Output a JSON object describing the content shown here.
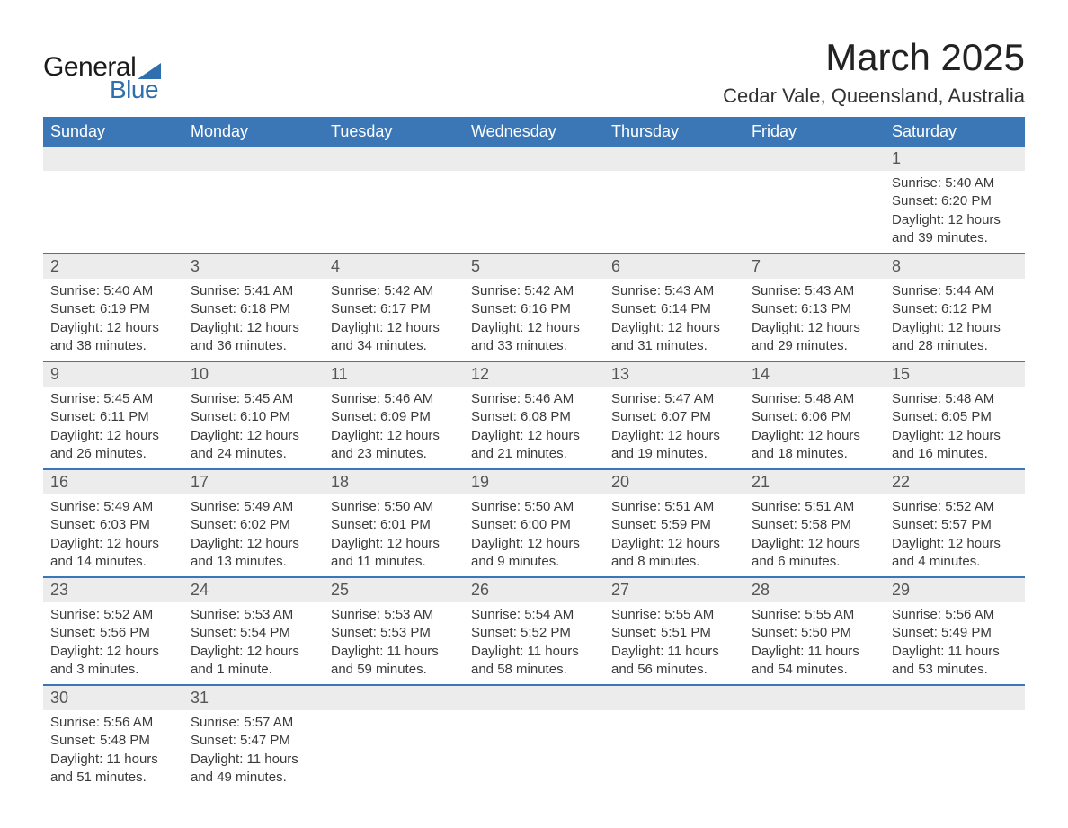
{
  "logo": {
    "text1": "General",
    "text2": "Blue",
    "accent_color": "#2f6fae"
  },
  "title": "March 2025",
  "subtitle": "Cedar Vale, Queensland, Australia",
  "colors": {
    "header_bg": "#3b77b6",
    "header_text": "#ffffff",
    "row_border": "#3b77b6",
    "daynum_bg": "#ececec",
    "body_text": "#3a3a3a"
  },
  "fontsize": {
    "title": 42,
    "subtitle": 22,
    "dayhead": 18,
    "daynum": 18,
    "body": 15
  },
  "days_of_week": [
    "Sunday",
    "Monday",
    "Tuesday",
    "Wednesday",
    "Thursday",
    "Friday",
    "Saturday"
  ],
  "weeks": [
    [
      {
        "n": "",
        "sunrise": "",
        "sunset": "",
        "daylight": ""
      },
      {
        "n": "",
        "sunrise": "",
        "sunset": "",
        "daylight": ""
      },
      {
        "n": "",
        "sunrise": "",
        "sunset": "",
        "daylight": ""
      },
      {
        "n": "",
        "sunrise": "",
        "sunset": "",
        "daylight": ""
      },
      {
        "n": "",
        "sunrise": "",
        "sunset": "",
        "daylight": ""
      },
      {
        "n": "",
        "sunrise": "",
        "sunset": "",
        "daylight": ""
      },
      {
        "n": "1",
        "sunrise": "Sunrise: 5:40 AM",
        "sunset": "Sunset: 6:20 PM",
        "daylight": "Daylight: 12 hours and 39 minutes."
      }
    ],
    [
      {
        "n": "2",
        "sunrise": "Sunrise: 5:40 AM",
        "sunset": "Sunset: 6:19 PM",
        "daylight": "Daylight: 12 hours and 38 minutes."
      },
      {
        "n": "3",
        "sunrise": "Sunrise: 5:41 AM",
        "sunset": "Sunset: 6:18 PM",
        "daylight": "Daylight: 12 hours and 36 minutes."
      },
      {
        "n": "4",
        "sunrise": "Sunrise: 5:42 AM",
        "sunset": "Sunset: 6:17 PM",
        "daylight": "Daylight: 12 hours and 34 minutes."
      },
      {
        "n": "5",
        "sunrise": "Sunrise: 5:42 AM",
        "sunset": "Sunset: 6:16 PM",
        "daylight": "Daylight: 12 hours and 33 minutes."
      },
      {
        "n": "6",
        "sunrise": "Sunrise: 5:43 AM",
        "sunset": "Sunset: 6:14 PM",
        "daylight": "Daylight: 12 hours and 31 minutes."
      },
      {
        "n": "7",
        "sunrise": "Sunrise: 5:43 AM",
        "sunset": "Sunset: 6:13 PM",
        "daylight": "Daylight: 12 hours and 29 minutes."
      },
      {
        "n": "8",
        "sunrise": "Sunrise: 5:44 AM",
        "sunset": "Sunset: 6:12 PM",
        "daylight": "Daylight: 12 hours and 28 minutes."
      }
    ],
    [
      {
        "n": "9",
        "sunrise": "Sunrise: 5:45 AM",
        "sunset": "Sunset: 6:11 PM",
        "daylight": "Daylight: 12 hours and 26 minutes."
      },
      {
        "n": "10",
        "sunrise": "Sunrise: 5:45 AM",
        "sunset": "Sunset: 6:10 PM",
        "daylight": "Daylight: 12 hours and 24 minutes."
      },
      {
        "n": "11",
        "sunrise": "Sunrise: 5:46 AM",
        "sunset": "Sunset: 6:09 PM",
        "daylight": "Daylight: 12 hours and 23 minutes."
      },
      {
        "n": "12",
        "sunrise": "Sunrise: 5:46 AM",
        "sunset": "Sunset: 6:08 PM",
        "daylight": "Daylight: 12 hours and 21 minutes."
      },
      {
        "n": "13",
        "sunrise": "Sunrise: 5:47 AM",
        "sunset": "Sunset: 6:07 PM",
        "daylight": "Daylight: 12 hours and 19 minutes."
      },
      {
        "n": "14",
        "sunrise": "Sunrise: 5:48 AM",
        "sunset": "Sunset: 6:06 PM",
        "daylight": "Daylight: 12 hours and 18 minutes."
      },
      {
        "n": "15",
        "sunrise": "Sunrise: 5:48 AM",
        "sunset": "Sunset: 6:05 PM",
        "daylight": "Daylight: 12 hours and 16 minutes."
      }
    ],
    [
      {
        "n": "16",
        "sunrise": "Sunrise: 5:49 AM",
        "sunset": "Sunset: 6:03 PM",
        "daylight": "Daylight: 12 hours and 14 minutes."
      },
      {
        "n": "17",
        "sunrise": "Sunrise: 5:49 AM",
        "sunset": "Sunset: 6:02 PM",
        "daylight": "Daylight: 12 hours and 13 minutes."
      },
      {
        "n": "18",
        "sunrise": "Sunrise: 5:50 AM",
        "sunset": "Sunset: 6:01 PM",
        "daylight": "Daylight: 12 hours and 11 minutes."
      },
      {
        "n": "19",
        "sunrise": "Sunrise: 5:50 AM",
        "sunset": "Sunset: 6:00 PM",
        "daylight": "Daylight: 12 hours and 9 minutes."
      },
      {
        "n": "20",
        "sunrise": "Sunrise: 5:51 AM",
        "sunset": "Sunset: 5:59 PM",
        "daylight": "Daylight: 12 hours and 8 minutes."
      },
      {
        "n": "21",
        "sunrise": "Sunrise: 5:51 AM",
        "sunset": "Sunset: 5:58 PM",
        "daylight": "Daylight: 12 hours and 6 minutes."
      },
      {
        "n": "22",
        "sunrise": "Sunrise: 5:52 AM",
        "sunset": "Sunset: 5:57 PM",
        "daylight": "Daylight: 12 hours and 4 minutes."
      }
    ],
    [
      {
        "n": "23",
        "sunrise": "Sunrise: 5:52 AM",
        "sunset": "Sunset: 5:56 PM",
        "daylight": "Daylight: 12 hours and 3 minutes."
      },
      {
        "n": "24",
        "sunrise": "Sunrise: 5:53 AM",
        "sunset": "Sunset: 5:54 PM",
        "daylight": "Daylight: 12 hours and 1 minute."
      },
      {
        "n": "25",
        "sunrise": "Sunrise: 5:53 AM",
        "sunset": "Sunset: 5:53 PM",
        "daylight": "Daylight: 11 hours and 59 minutes."
      },
      {
        "n": "26",
        "sunrise": "Sunrise: 5:54 AM",
        "sunset": "Sunset: 5:52 PM",
        "daylight": "Daylight: 11 hours and 58 minutes."
      },
      {
        "n": "27",
        "sunrise": "Sunrise: 5:55 AM",
        "sunset": "Sunset: 5:51 PM",
        "daylight": "Daylight: 11 hours and 56 minutes."
      },
      {
        "n": "28",
        "sunrise": "Sunrise: 5:55 AM",
        "sunset": "Sunset: 5:50 PM",
        "daylight": "Daylight: 11 hours and 54 minutes."
      },
      {
        "n": "29",
        "sunrise": "Sunrise: 5:56 AM",
        "sunset": "Sunset: 5:49 PM",
        "daylight": "Daylight: 11 hours and 53 minutes."
      }
    ],
    [
      {
        "n": "30",
        "sunrise": "Sunrise: 5:56 AM",
        "sunset": "Sunset: 5:48 PM",
        "daylight": "Daylight: 11 hours and 51 minutes."
      },
      {
        "n": "31",
        "sunrise": "Sunrise: 5:57 AM",
        "sunset": "Sunset: 5:47 PM",
        "daylight": "Daylight: 11 hours and 49 minutes."
      },
      {
        "n": "",
        "sunrise": "",
        "sunset": "",
        "daylight": ""
      },
      {
        "n": "",
        "sunrise": "",
        "sunset": "",
        "daylight": ""
      },
      {
        "n": "",
        "sunrise": "",
        "sunset": "",
        "daylight": ""
      },
      {
        "n": "",
        "sunrise": "",
        "sunset": "",
        "daylight": ""
      },
      {
        "n": "",
        "sunrise": "",
        "sunset": "",
        "daylight": ""
      }
    ]
  ]
}
